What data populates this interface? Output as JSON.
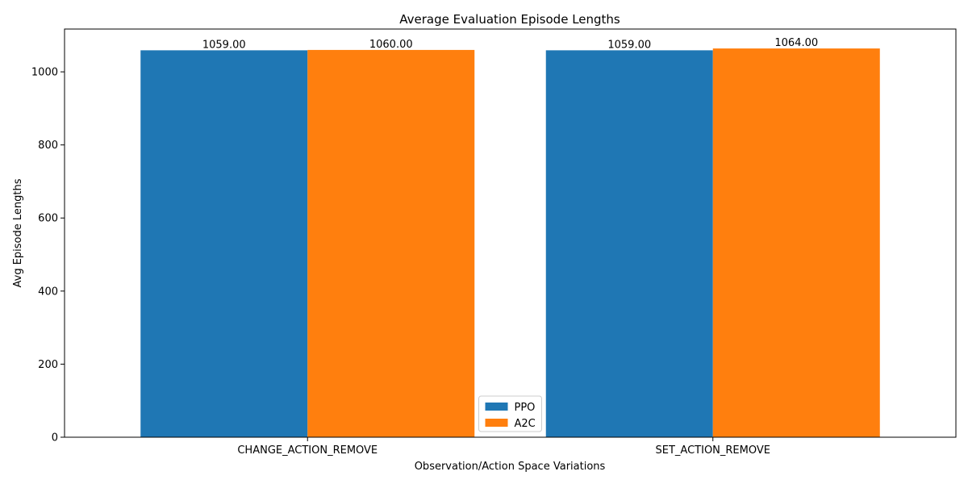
{
  "chart_data": {
    "type": "bar",
    "title": "Average Evaluation Episode Lengths",
    "xlabel": "Observation/Action Space Variations",
    "ylabel": "Avg Episode Lengths",
    "categories": [
      "CHANGE_ACTION_REMOVE",
      "SET_ACTION_REMOVE"
    ],
    "series": [
      {
        "name": "PPO",
        "values": [
          1059.0,
          1059.0
        ],
        "labels": [
          "1059.00",
          "1059.00"
        ],
        "color": "#1f77b4"
      },
      {
        "name": "A2C",
        "values": [
          1060.0,
          1064.0
        ],
        "labels": [
          "1060.00",
          "1064.00"
        ],
        "color": "#ff7f0e"
      }
    ],
    "ylim": [
      0,
      1117.2
    ],
    "yticks": [
      0,
      200,
      400,
      600,
      800,
      1000
    ],
    "grid": false,
    "legend": "lower center"
  }
}
